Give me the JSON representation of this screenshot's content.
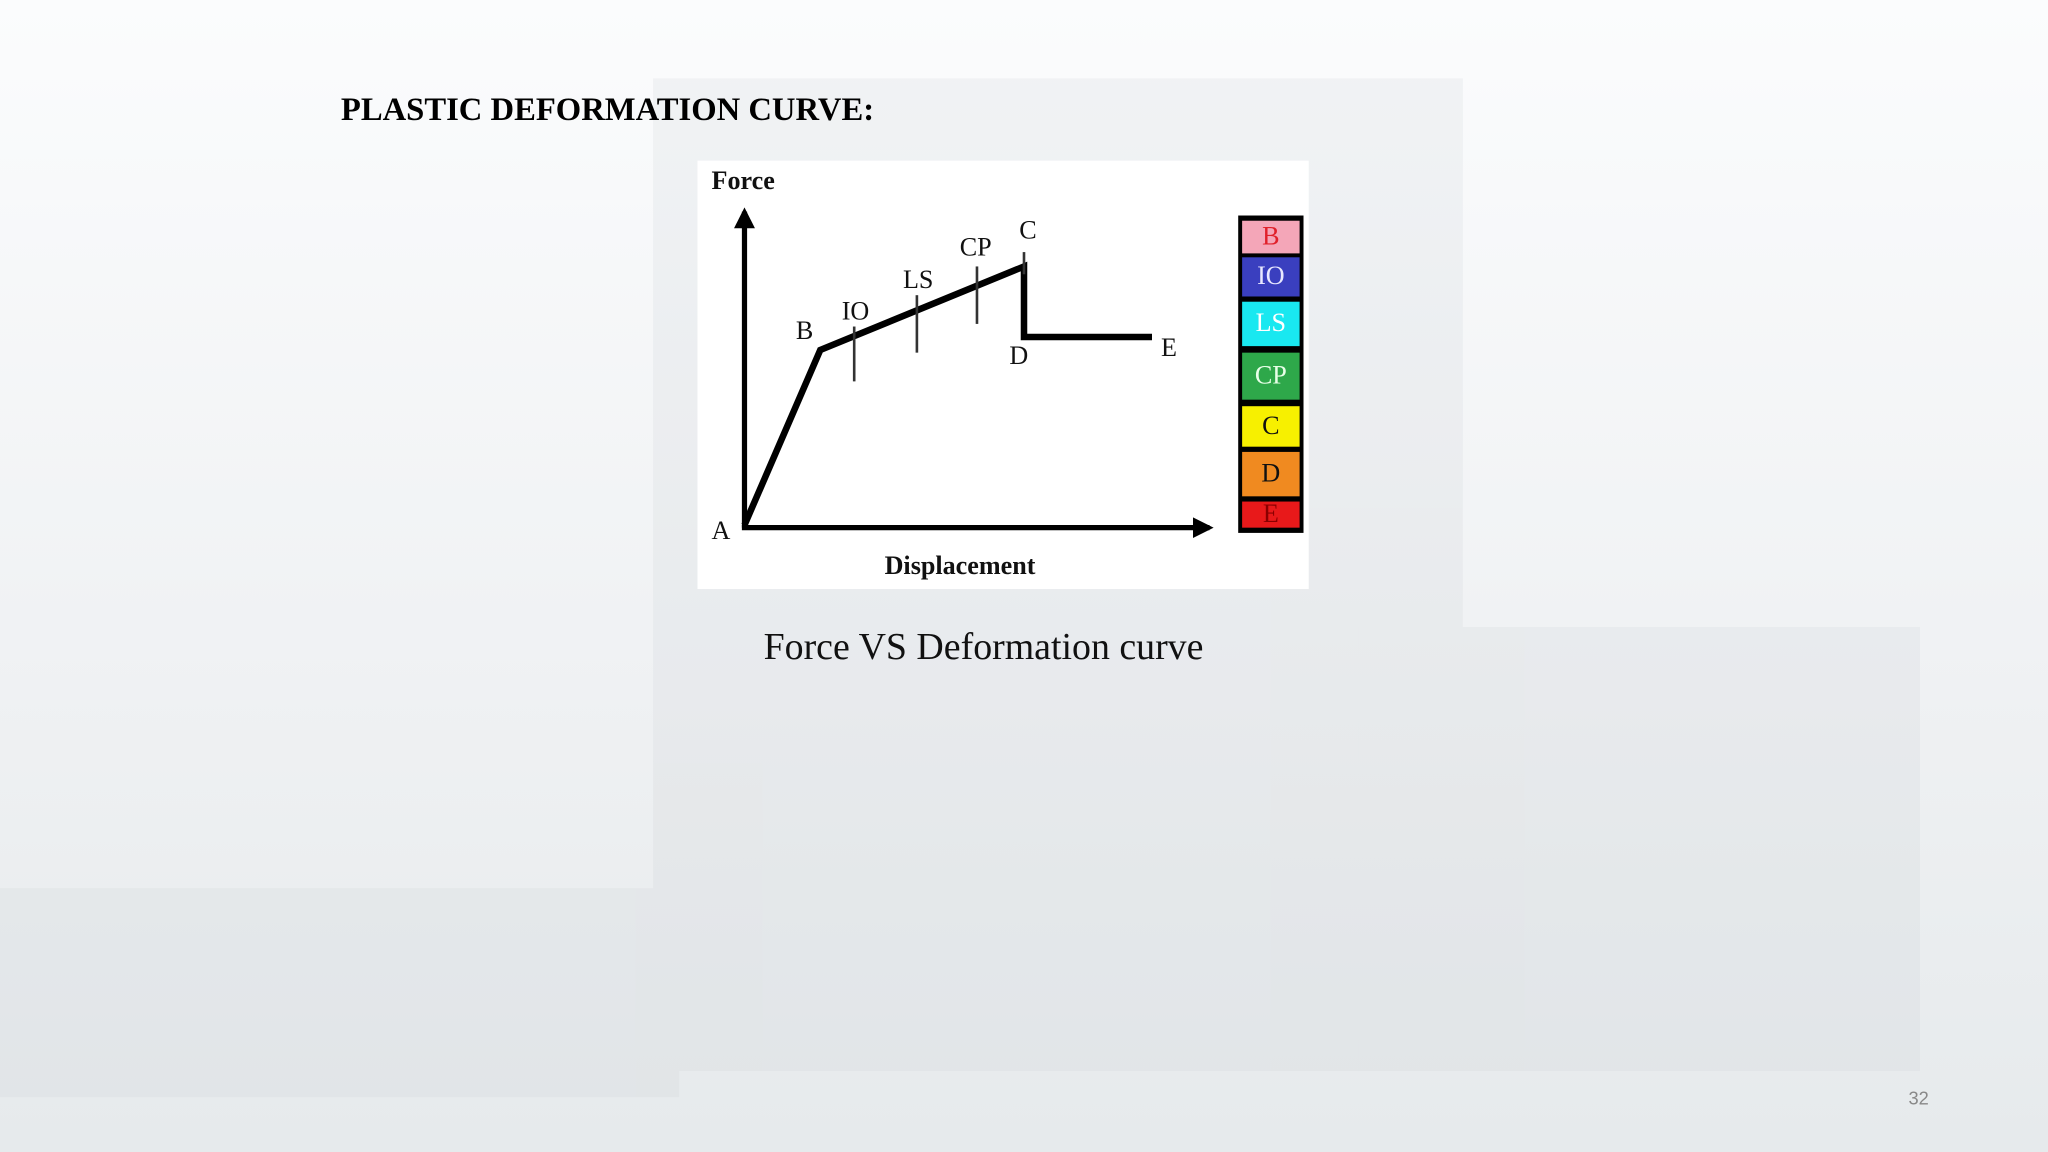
{
  "slide": {
    "title": "PLASTIC DEFORMATION CURVE:",
    "caption": "Force VS Deformation curve",
    "page_number": "32"
  },
  "diagram": {
    "y_axis_label": "Force",
    "x_axis_label": "Displacement",
    "points": [
      "A",
      "B",
      "C",
      "D",
      "E"
    ],
    "markers": [
      "IO",
      "LS",
      "CP"
    ],
    "legend": [
      {
        "label": "B",
        "color": "#f4a6b8",
        "text_color": "#e0202a"
      },
      {
        "label": "IO",
        "color": "#3a3fbf",
        "text_color": "#e8e8ff"
      },
      {
        "label": "LS",
        "color": "#19e8f0",
        "text_color": "#ffffff"
      },
      {
        "label": "CP",
        "color": "#2ea84a",
        "text_color": "#e8ffe8"
      },
      {
        "label": "C",
        "color": "#f7f000",
        "text_color": "#111111"
      },
      {
        "label": "D",
        "color": "#f08a20",
        "text_color": "#111111"
      },
      {
        "label": "E",
        "color": "#e8191a",
        "text_color": "#8a0000"
      }
    ]
  }
}
